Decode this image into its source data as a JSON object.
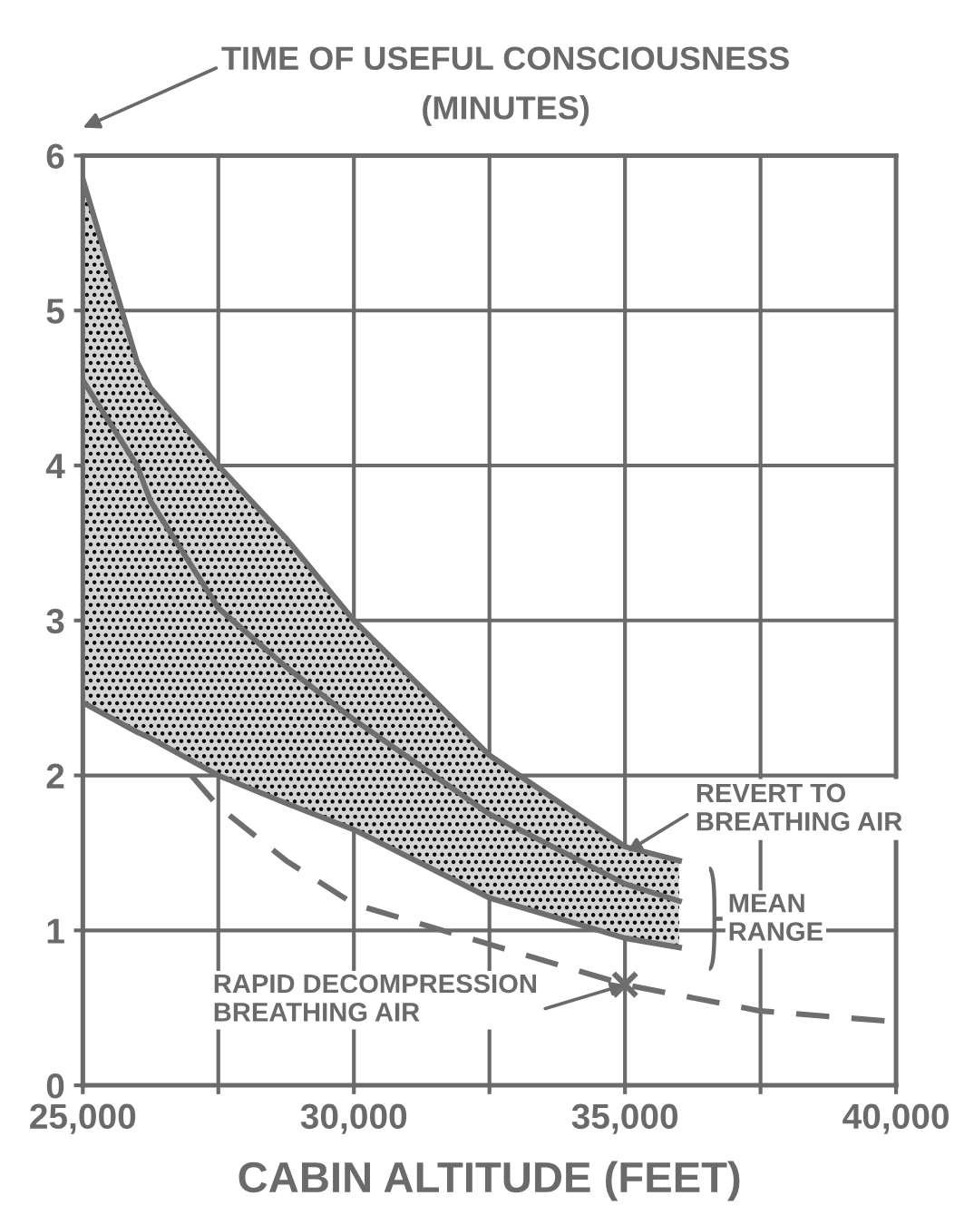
{
  "chart_data": {
    "type": "line",
    "ylabel": "TIME OF USEFUL CONSCIOUSNESS\n(MINUTES)",
    "xlabel": "CABIN ALTITUDE (FEET)",
    "xlim": [
      25000,
      40000
    ],
    "ylim": [
      0,
      6
    ],
    "xticks": [
      {
        "value": 25000,
        "label": "25,000"
      },
      {
        "value": 27500,
        "label": null
      },
      {
        "value": 30000,
        "label": "30,000"
      },
      {
        "value": 32500,
        "label": null
      },
      {
        "value": 35000,
        "label": "35,000"
      },
      {
        "value": 37500,
        "label": null
      },
      {
        "value": 40000,
        "label": "40,000"
      }
    ],
    "yticks": [
      0,
      1,
      2,
      3,
      4,
      5,
      6
    ],
    "grid": true,
    "legend": false,
    "series": [
      {
        "color": "#6e6e6e",
        "line_style": "solid",
        "x": [
          25000,
          26000,
          26250,
          27500,
          28750,
          30000,
          32500,
          35000,
          36000
        ],
        "values": [
          4.55,
          4.0,
          3.77,
          3.08,
          2.7,
          2.36,
          1.75,
          1.3,
          1.19
        ],
        "lower": [
          2.47,
          2.28,
          2.24,
          2.0,
          1.82,
          1.65,
          1.21,
          0.95,
          0.89
        ],
        "upper": [
          5.85,
          4.67,
          4.5,
          4.0,
          3.53,
          3.0,
          2.13,
          1.54,
          1.45
        ]
      },
      {
        "color": "#6e6e6e",
        "line_style": "solid",
        "x": [
          25000,
          26000,
          26250,
          27500,
          28750,
          30000,
          32500,
          35000,
          36000
        ],
        "values": [
          5.85,
          4.67,
          4.5,
          4.0,
          3.53,
          3.0,
          2.13,
          1.54,
          1.45
        ]
      },
      {
        "color": "#6e6e6e",
        "line_style": "solid",
        "x": [
          25000,
          26000,
          26250,
          27500,
          28750,
          30000,
          32500,
          35000,
          36000
        ],
        "values": [
          2.47,
          2.28,
          2.24,
          2.0,
          1.82,
          1.65,
          1.21,
          0.95,
          0.89
        ]
      },
      {
        "color": "#6e6e6e",
        "line_style": "dashed",
        "x": [
          27000,
          27500,
          28750,
          30000,
          32500,
          35000,
          37500,
          40000
        ],
        "values": [
          2.0,
          1.8,
          1.45,
          1.17,
          0.91,
          0.65,
          0.48,
          0.41
        ]
      },
      {
        "type": "scatter",
        "color": "#6e6e6e",
        "marker": "cross",
        "x": [
          35000
        ],
        "values": [
          0.65
        ]
      }
    ],
    "annotations": [
      {
        "text": "REVERT TO\nBREATHING AIR",
        "x": 35000,
        "y": 1.5
      },
      {
        "text": "RAPID DECOMPRESSION\nBREATHING AIR",
        "x": 35000,
        "y": 0.65
      },
      "MEAN\nRANGE"
    ]
  }
}
